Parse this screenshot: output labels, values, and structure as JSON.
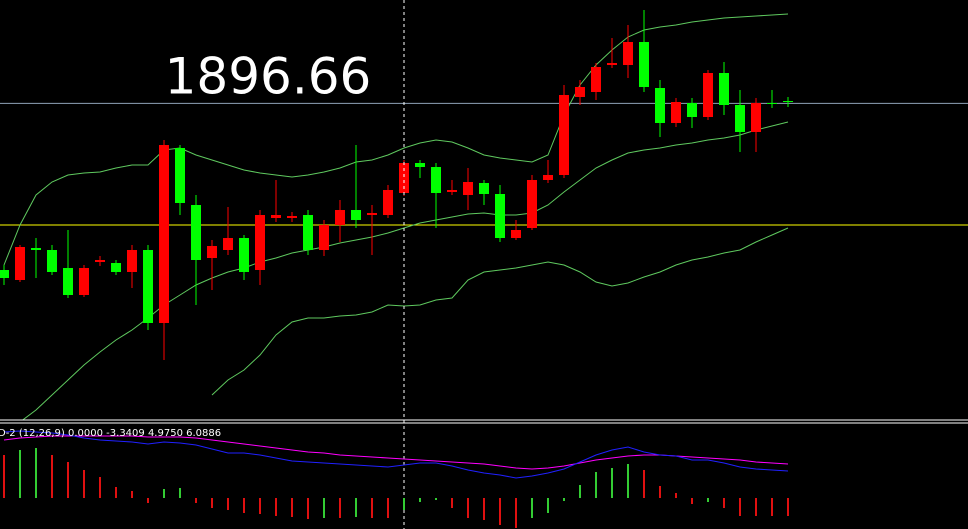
{
  "chart_data": [
    {
      "type": "candlestick",
      "ylim": [
        1865,
        1907
      ],
      "up_color": "#ff0000",
      "down_color": "#00ff00",
      "price_line": {
        "value": 1896.66,
        "color": "#8fa3b8"
      },
      "level": {
        "value": 1884.5,
        "color": "#ffff00"
      },
      "open": [
        1880.0,
        1879.0,
        1882.2,
        1882.0,
        1880.2,
        1877.5,
        1880.8,
        1880.7,
        1879.8,
        1882.0,
        1874.7,
        1892.2,
        1886.5,
        1881.2,
        1882.0,
        1883.2,
        1880.0,
        1885.2,
        1885.2,
        1885.5,
        1882.0,
        1884.5,
        1886.0,
        1885.5,
        1885.5,
        1887.7,
        1890.7,
        1890.3,
        1887.8,
        1887.5,
        1888.7,
        1887.6,
        1883.2,
        1884.2,
        1889.0,
        1889.5,
        1897.3,
        1897.8,
        1900.5,
        1900.5,
        1902.8,
        1898.2,
        1894.7,
        1896.7,
        1895.3,
        1899.7,
        1896.5,
        1893.8,
        1896.7,
        1896.9
      ],
      "close": [
        1879.2,
        1882.3,
        1882.0,
        1879.8,
        1877.5,
        1880.2,
        1881.0,
        1879.8,
        1882.0,
        1874.7,
        1892.5,
        1886.7,
        1881.0,
        1882.4,
        1883.2,
        1879.8,
        1885.5,
        1885.5,
        1885.4,
        1882.0,
        1884.5,
        1886.0,
        1885.0,
        1885.7,
        1888.0,
        1890.7,
        1890.3,
        1887.7,
        1888.0,
        1888.8,
        1887.6,
        1883.2,
        1884.0,
        1889.0,
        1889.5,
        1897.5,
        1898.3,
        1900.3,
        1900.7,
        1902.8,
        1898.3,
        1894.7,
        1896.8,
        1895.3,
        1899.7,
        1896.5,
        1893.8,
        1896.7,
        1896.6,
        1896.8
      ],
      "high": [
        1880.5,
        1882.5,
        1883.2,
        1882.5,
        1884.0,
        1880.5,
        1881.4,
        1881.0,
        1882.5,
        1882.5,
        1893.0,
        1892.5,
        1887.5,
        1883.0,
        1886.3,
        1883.5,
        1886.0,
        1889.0,
        1885.8,
        1886.0,
        1885.0,
        1887.0,
        1892.5,
        1886.5,
        1888.5,
        1891.0,
        1891.0,
        1890.7,
        1889.0,
        1890.2,
        1889.0,
        1888.5,
        1885.0,
        1889.5,
        1891.0,
        1898.5,
        1899.0,
        1900.7,
        1903.2,
        1904.5,
        1906.0,
        1899.0,
        1897.2,
        1897.2,
        1900.0,
        1900.8,
        1898.0,
        1897.2,
        1898.0,
        1897.3
      ],
      "low": [
        1878.5,
        1878.8,
        1879.2,
        1879.5,
        1877.2,
        1877.3,
        1880.4,
        1879.5,
        1878.2,
        1874.0,
        1871.0,
        1885.5,
        1876.5,
        1878.0,
        1881.5,
        1879.0,
        1878.5,
        1884.8,
        1884.8,
        1881.5,
        1881.4,
        1882.8,
        1884.2,
        1881.5,
        1885.2,
        1887.4,
        1889.2,
        1884.2,
        1887.5,
        1886.0,
        1886.5,
        1882.8,
        1883.0,
        1884.0,
        1888.7,
        1889.2,
        1896.5,
        1897.0,
        1900.2,
        1899.2,
        1897.8,
        1893.3,
        1894.3,
        1894.2,
        1895.0,
        1895.5,
        1891.8,
        1891.8,
        1896.2,
        1896.3
      ],
      "bands": [
        {
          "color": "#5fc95f",
          "values": [
            1880.5,
            1884.5,
            1887.5,
            1888.8,
            1889.5,
            1889.7,
            1889.8,
            1890.2,
            1890.5,
            1890.5,
            1892.0,
            1892.2,
            1891.5,
            1891.0,
            1890.5,
            1890.0,
            1889.7,
            1889.5,
            1889.3,
            1889.5,
            1889.8,
            1890.2,
            1890.8,
            1891.0,
            1891.5,
            1892.2,
            1892.7,
            1893.0,
            1892.8,
            1892.2,
            1891.5,
            1891.2,
            1891.0,
            1890.8,
            1891.5,
            1895.5,
            1898.5,
            1900.5,
            1902.0,
            1903.3,
            1904.0,
            1904.3,
            1904.5,
            1904.8,
            1905.0,
            1905.2,
            1905.3,
            1905.4,
            1905.5,
            1905.6
          ]
        },
        {
          "color": "#5fc95f",
          "values": [
            1864.0,
            1864.8,
            1866.0,
            1867.5,
            1869.0,
            1870.5,
            1871.8,
            1873.0,
            1874.0,
            1875.2,
            1876.5,
            1877.5,
            1878.5,
            1879.2,
            1879.8,
            1880.2,
            1880.8,
            1881.2,
            1881.7,
            1882.0,
            1882.3,
            1882.7,
            1883.0,
            1883.3,
            1883.7,
            1884.2,
            1884.7,
            1885.0,
            1885.3,
            1885.6,
            1885.7,
            1885.5,
            1885.5,
            1885.7,
            1886.5,
            1887.8,
            1889.0,
            1890.2,
            1891.0,
            1891.7,
            1892.0,
            1892.2,
            1892.5,
            1892.7,
            1893.0,
            1893.2,
            1893.5,
            1894.0,
            1894.4,
            1894.8
          ]
        },
        {
          "color": "#5fc95f",
          "values": [
            null,
            null,
            null,
            null,
            null,
            null,
            null,
            null,
            null,
            null,
            null,
            null,
            null,
            1867.5,
            1869.0,
            1870.0,
            1871.5,
            1873.5,
            1874.8,
            1875.2,
            1875.2,
            1875.4,
            1875.5,
            1875.8,
            1876.5,
            1876.4,
            1876.5,
            1877.0,
            1877.2,
            1879.0,
            1879.8,
            1880.0,
            1880.2,
            1880.5,
            1880.8,
            1880.5,
            1879.8,
            1878.8,
            1878.4,
            1878.7,
            1879.3,
            1879.8,
            1880.5,
            1881.0,
            1881.3,
            1881.7,
            1882.0,
            1882.8,
            1883.5,
            1884.2
          ]
        }
      ]
    },
    {
      "type": "macd",
      "label": "D-2 (12,26,9) 0.0000 -3.3409 4.9750 6.0886",
      "ylim": [
        -3.1,
        6.8
      ],
      "up_color": "#33cc33",
      "down_color": "#e01010",
      "values": [
        4.3,
        4.8,
        5.0,
        4.3,
        3.6,
        2.8,
        2.1,
        1.1,
        0.7,
        -0.5,
        0.9,
        1.0,
        -0.5,
        -1.0,
        -1.2,
        -1.5,
        -1.6,
        -1.8,
        -1.9,
        -2.1,
        -2.0,
        -2.0,
        -1.9,
        -2.0,
        -2.0,
        -1.2,
        -0.4,
        -0.2,
        -1.0,
        -2.0,
        -2.2,
        -2.7,
        -3.0,
        -2.0,
        -1.5,
        -0.3,
        1.3,
        2.6,
        3.0,
        3.4,
        2.8,
        1.2,
        0.5,
        -0.6,
        -0.4,
        -1.0,
        -1.8,
        -1.8,
        -1.8,
        -1.8
      ],
      "series": [
        {
          "color": "#ff00ff",
          "values": [
            5.8,
            6.0,
            6.1,
            6.2,
            6.2,
            6.2,
            6.2,
            6.2,
            6.2,
            6.1,
            6.1,
            6.1,
            6.0,
            5.8,
            5.6,
            5.4,
            5.2,
            5.0,
            4.8,
            4.6,
            4.5,
            4.3,
            4.2,
            4.1,
            4.0,
            3.9,
            3.8,
            3.7,
            3.6,
            3.5,
            3.4,
            3.2,
            3.0,
            2.9,
            3.0,
            3.2,
            3.5,
            3.8,
            4.0,
            4.2,
            4.3,
            4.3,
            4.2,
            4.1,
            4.0,
            3.9,
            3.8,
            3.6,
            3.5,
            3.4
          ]
        },
        {
          "color": "#2020ff",
          "values": [
            6.6,
            6.7,
            6.6,
            6.5,
            6.3,
            6.0,
            5.8,
            5.7,
            5.6,
            5.4,
            5.6,
            5.5,
            5.3,
            4.9,
            4.5,
            4.5,
            4.3,
            4.0,
            3.7,
            3.6,
            3.5,
            3.4,
            3.3,
            3.2,
            3.1,
            3.3,
            3.5,
            3.5,
            3.2,
            2.8,
            2.5,
            2.3,
            2.0,
            2.2,
            2.5,
            2.9,
            3.6,
            4.3,
            4.8,
            5.1,
            4.6,
            4.3,
            4.2,
            3.8,
            3.8,
            3.5,
            3.1,
            2.9,
            2.8,
            2.7
          ]
        }
      ]
    }
  ]
}
